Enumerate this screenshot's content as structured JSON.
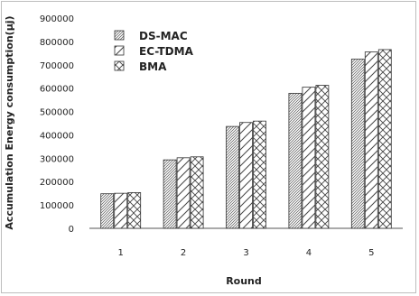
{
  "chart_data": {
    "type": "bar",
    "title": "",
    "xlabel": "Round",
    "ylabel": "Accumulation Energy consumption(µj)",
    "categories": [
      "1",
      "2",
      "3",
      "4",
      "5"
    ],
    "ylim": [
      0,
      900000
    ],
    "yticks": [
      "0",
      "100000",
      "200000",
      "300000",
      "400000",
      "500000",
      "600000",
      "700000",
      "800000",
      "900000"
    ],
    "grid": false,
    "legend_position": "top-left",
    "series": [
      {
        "name": "DS-MAC",
        "values": [
          148000,
          293000,
          436000,
          578000,
          724000
        ]
      },
      {
        "name": "EC-TDMA",
        "values": [
          150000,
          302000,
          453000,
          604000,
          755000
        ]
      },
      {
        "name": "BMA",
        "values": [
          153000,
          306000,
          459000,
          612000,
          765000
        ]
      }
    ],
    "patterns": [
      "fine-diagonal-hatch",
      "wide-diagonal-hatch",
      "cross-hatch"
    ],
    "colors": {
      "line": "#333333",
      "axis": "#555555",
      "background": "#ffffff"
    }
  }
}
